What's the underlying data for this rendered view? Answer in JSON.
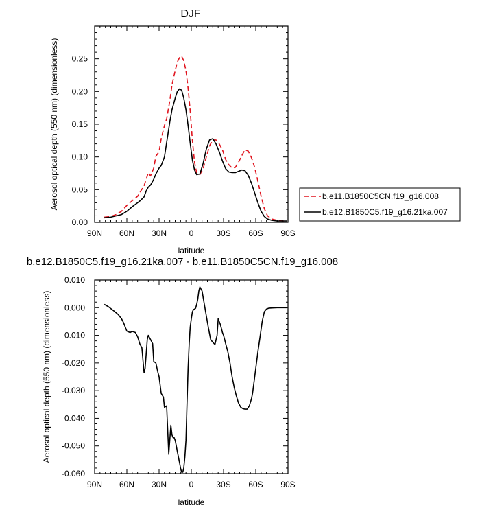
{
  "chart_data": [
    {
      "type": "line",
      "title": "DJF",
      "xlabel": "latitude",
      "ylabel": "Aerosol optical depth (550 nm) (dimensionless)",
      "xlim": [
        90,
        -90
      ],
      "ylim": [
        0,
        0.3
      ],
      "x_ticks": [
        90,
        60,
        30,
        0,
        -30,
        -60,
        -90
      ],
      "x_tick_labels": [
        "90N",
        "60N",
        "30N",
        "0",
        "30S",
        "60S",
        "90S"
      ],
      "y_ticks": [
        0,
        0.05,
        0.1,
        0.15,
        0.2,
        0.25
      ],
      "y_tick_labels": [
        "0.00",
        "0.05",
        "0.10",
        "0.15",
        "0.20",
        "0.25"
      ],
      "series": [
        {
          "name": "b.e11.B1850C5CN.f19_g16.008",
          "color": "#e0141e",
          "dash": "dashed",
          "x": [
            81,
            75,
            70,
            65,
            60,
            55,
            50,
            47,
            44,
            42,
            40,
            38,
            35,
            33,
            30,
            28,
            25,
            23,
            20,
            18,
            15,
            13,
            11,
            9,
            7,
            5,
            3,
            1,
            -1,
            -3,
            -5,
            -8,
            -11,
            -14,
            -17,
            -20,
            -23,
            -26,
            -29,
            -32,
            -35,
            -38,
            -41,
            -44,
            -47,
            -50,
            -53,
            -56,
            -59,
            -62,
            -65,
            -68,
            -71,
            -75,
            -80,
            -85,
            -89
          ],
          "y": [
            0.008,
            0.009,
            0.012,
            0.017,
            0.026,
            0.033,
            0.04,
            0.048,
            0.056,
            0.066,
            0.076,
            0.071,
            0.083,
            0.101,
            0.108,
            0.128,
            0.148,
            0.158,
            0.186,
            0.21,
            0.232,
            0.245,
            0.252,
            0.254,
            0.247,
            0.232,
            0.205,
            0.17,
            0.125,
            0.092,
            0.076,
            0.073,
            0.082,
            0.1,
            0.117,
            0.126,
            0.126,
            0.12,
            0.111,
            0.096,
            0.088,
            0.083,
            0.084,
            0.092,
            0.102,
            0.111,
            0.109,
            0.099,
            0.084,
            0.063,
            0.04,
            0.021,
            0.01,
            0.005,
            0.003,
            0.002,
            0.002
          ]
        },
        {
          "name": "b.e12.B1850C5.f19_g16.21ka.007",
          "color": "#000000",
          "dash": "solid",
          "x": [
            81,
            75,
            70,
            65,
            60,
            55,
            50,
            47,
            44,
            42,
            40,
            38,
            35,
            33,
            30,
            28,
            25,
            23,
            20,
            18,
            15,
            13,
            11,
            9,
            7,
            5,
            3,
            1,
            -1,
            -3,
            -5,
            -8,
            -11,
            -14,
            -17,
            -20,
            -23,
            -26,
            -29,
            -32,
            -35,
            -38,
            -41,
            -44,
            -47,
            -50,
            -53,
            -56,
            -59,
            -62,
            -65,
            -68,
            -71,
            -75,
            -80,
            -85,
            -89
          ],
          "y": [
            0.007,
            0.008,
            0.01,
            0.012,
            0.017,
            0.024,
            0.03,
            0.034,
            0.039,
            0.048,
            0.054,
            0.057,
            0.066,
            0.074,
            0.083,
            0.087,
            0.1,
            0.122,
            0.154,
            0.172,
            0.19,
            0.2,
            0.204,
            0.202,
            0.19,
            0.172,
            0.148,
            0.121,
            0.095,
            0.08,
            0.073,
            0.074,
            0.09,
            0.112,
            0.126,
            0.128,
            0.12,
            0.108,
            0.094,
            0.082,
            0.077,
            0.076,
            0.076,
            0.078,
            0.08,
            0.079,
            0.072,
            0.06,
            0.045,
            0.03,
            0.017,
            0.009,
            0.005,
            0.003,
            0.002,
            0.002,
            0.002
          ]
        }
      ],
      "legend_position": "right-outside"
    },
    {
      "type": "line",
      "title": "b.e12.B1850C5.f19_g16.21ka.007 - b.e11.B1850C5CN.f19_g16.008",
      "xlabel": "latitude",
      "ylabel": "Aerosol optical depth (550 nm) (dimensionless)",
      "xlim": [
        90,
        -90
      ],
      "ylim": [
        -0.06,
        0.01
      ],
      "x_ticks": [
        90,
        60,
        30,
        0,
        -30,
        -60,
        -90
      ],
      "x_tick_labels": [
        "90N",
        "60N",
        "30N",
        "0",
        "30S",
        "60S",
        "90S"
      ],
      "y_ticks": [
        0.01,
        0,
        -0.01,
        -0.02,
        -0.03,
        -0.04,
        -0.05,
        -0.06
      ],
      "y_tick_labels": [
        "0.010",
        "0.000",
        "-0.010",
        "-0.020",
        "-0.030",
        "-0.040",
        "-0.050",
        "-0.060"
      ],
      "series": [
        {
          "name": "difference",
          "color": "#000000",
          "dash": "solid",
          "x": [
            81,
            77,
            72,
            68,
            65,
            63,
            60,
            57,
            55,
            52,
            50,
            48,
            46,
            44,
            43,
            41,
            40,
            38,
            36,
            35,
            33,
            31,
            30,
            28,
            26,
            25,
            23,
            21,
            19,
            18,
            17,
            16,
            15,
            14,
            13,
            12,
            11,
            10,
            9,
            8,
            7,
            6,
            5,
            4,
            3,
            2,
            1,
            0,
            -1,
            -2,
            -3,
            -4,
            -5,
            -6,
            -7,
            -8,
            -10,
            -12,
            -14,
            -16,
            -18,
            -20,
            -22,
            -24,
            -25,
            -26,
            -27,
            -28,
            -29,
            -30,
            -31,
            -32,
            -34,
            -36,
            -38,
            -40,
            -42,
            -44,
            -46,
            -48,
            -50,
            -52,
            -54,
            -56,
            -57,
            -58,
            -60,
            -62,
            -64,
            -66,
            -68,
            -70,
            -72,
            -75,
            -80,
            -85,
            -89
          ],
          "y": [
            0.0012,
            0.0003,
            -0.0012,
            -0.0025,
            -0.004,
            -0.0055,
            -0.0085,
            -0.009,
            -0.0086,
            -0.009,
            -0.0105,
            -0.013,
            -0.0145,
            -0.0235,
            -0.022,
            -0.0115,
            -0.01,
            -0.0115,
            -0.013,
            -0.0195,
            -0.02,
            -0.0235,
            -0.025,
            -0.031,
            -0.0323,
            -0.036,
            -0.0355,
            -0.053,
            -0.0425,
            -0.046,
            -0.047,
            -0.047,
            -0.048,
            -0.05,
            -0.052,
            -0.054,
            -0.056,
            -0.058,
            -0.0595,
            -0.0595,
            -0.058,
            -0.054,
            -0.048,
            -0.035,
            -0.022,
            -0.013,
            -0.007,
            -0.004,
            -0.0015,
            -0.0007,
            -0.0005,
            -0.0002,
            0.0012,
            0.003,
            0.006,
            0.0075,
            0.006,
            0.0015,
            -0.003,
            -0.0075,
            -0.0115,
            -0.0125,
            -0.0133,
            -0.01,
            -0.004,
            -0.005,
            -0.006,
            -0.0075,
            -0.009,
            -0.01,
            -0.0115,
            -0.013,
            -0.016,
            -0.02,
            -0.025,
            -0.029,
            -0.032,
            -0.0345,
            -0.036,
            -0.0365,
            -0.0367,
            -0.0367,
            -0.0355,
            -0.033,
            -0.031,
            -0.028,
            -0.022,
            -0.016,
            -0.0105,
            -0.005,
            -0.0015,
            -0.0005,
            -0.0002,
            -0.0001,
            0.0,
            0.0,
            0.0
          ]
        }
      ]
    }
  ]
}
